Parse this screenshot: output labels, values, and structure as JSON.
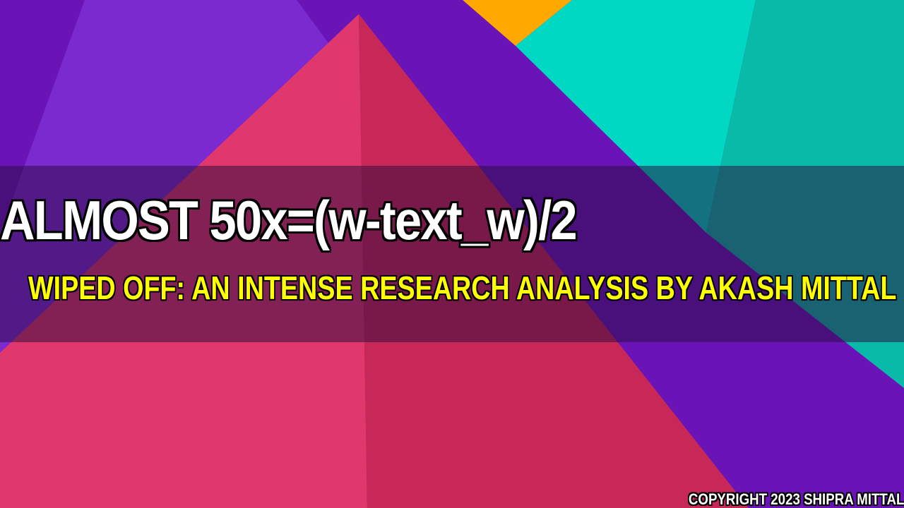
{
  "title": "ALMOST 50x=(w-text_w)/2",
  "subtitle": "WIPED OFF: AN INTENSE RESEARCH ANALYSIS BY AKASH MITTAL",
  "copyright": "COPYRIGHT 2023 SHIPRA MITTAL",
  "colors": {
    "background_purple": "#6a14b8",
    "light_purple": "#7b2ad0",
    "pink_left": "#e0386c",
    "pink_right": "#c82858",
    "teal_light": "#00d8c4",
    "teal_dark": "#0abaa8",
    "orange": "#ffa800",
    "title_text": "#ffffff",
    "subtitle_text": "#ffff00",
    "band_overlay": "rgba(40,10,60,0.5)"
  }
}
